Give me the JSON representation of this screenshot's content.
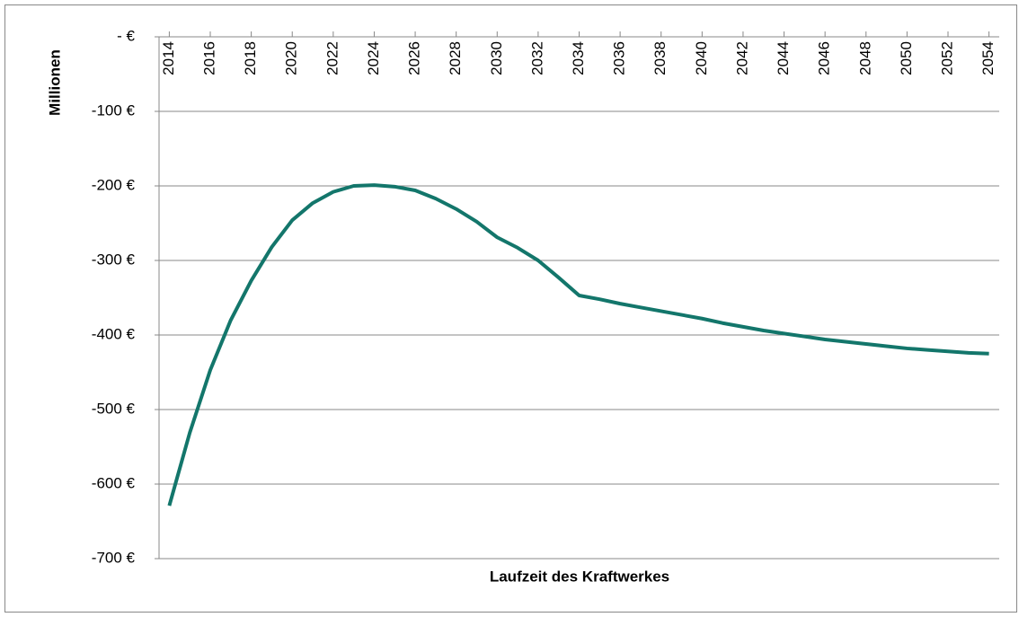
{
  "chart_data": {
    "type": "line",
    "y_label": "Millionen",
    "x_label": "Laufzeit des Kraftwerkes",
    "x": [
      2014,
      2015,
      2016,
      2017,
      2018,
      2019,
      2020,
      2021,
      2022,
      2023,
      2024,
      2025,
      2026,
      2027,
      2028,
      2029,
      2030,
      2031,
      2032,
      2033,
      2034,
      2035,
      2036,
      2037,
      2038,
      2039,
      2040,
      2041,
      2042,
      2043,
      2044,
      2045,
      2046,
      2047,
      2048,
      2049,
      2050,
      2051,
      2052,
      2053,
      2054
    ],
    "series": [
      {
        "color": "#13766b",
        "values": [
          -629,
          -531,
          -447,
          -380,
          -327,
          -282,
          -246,
          -223,
          -208,
          -200,
          -199,
          -201,
          -206,
          -217,
          -231,
          -248,
          -269,
          -283,
          -300,
          -323,
          -347,
          -352,
          -358,
          -363,
          -368,
          -373,
          -378,
          -384,
          -389,
          -394,
          -398,
          -402,
          -406,
          -409,
          -412,
          -415,
          -418,
          -420,
          -422,
          -424,
          -425
        ]
      }
    ],
    "xlim": [
      2013.5,
      2054.5
    ],
    "xticks": [
      2014,
      2016,
      2018,
      2020,
      2022,
      2024,
      2026,
      2028,
      2030,
      2032,
      2034,
      2036,
      2038,
      2040,
      2042,
      2044,
      2046,
      2048,
      2050,
      2052,
      2054
    ],
    "ylim": [
      -700,
      0
    ],
    "yticks": [
      {
        "value": 0,
        "label": "-   €"
      },
      {
        "value": -100,
        "label": "-100 €"
      },
      {
        "value": -200,
        "label": "-200 €"
      },
      {
        "value": -300,
        "label": "-300 €"
      },
      {
        "value": -400,
        "label": "-400 €"
      },
      {
        "value": -500,
        "label": "-500 €"
      },
      {
        "value": -600,
        "label": "-600 €"
      },
      {
        "value": -700,
        "label": "-700 €"
      }
    ],
    "grid": true
  }
}
